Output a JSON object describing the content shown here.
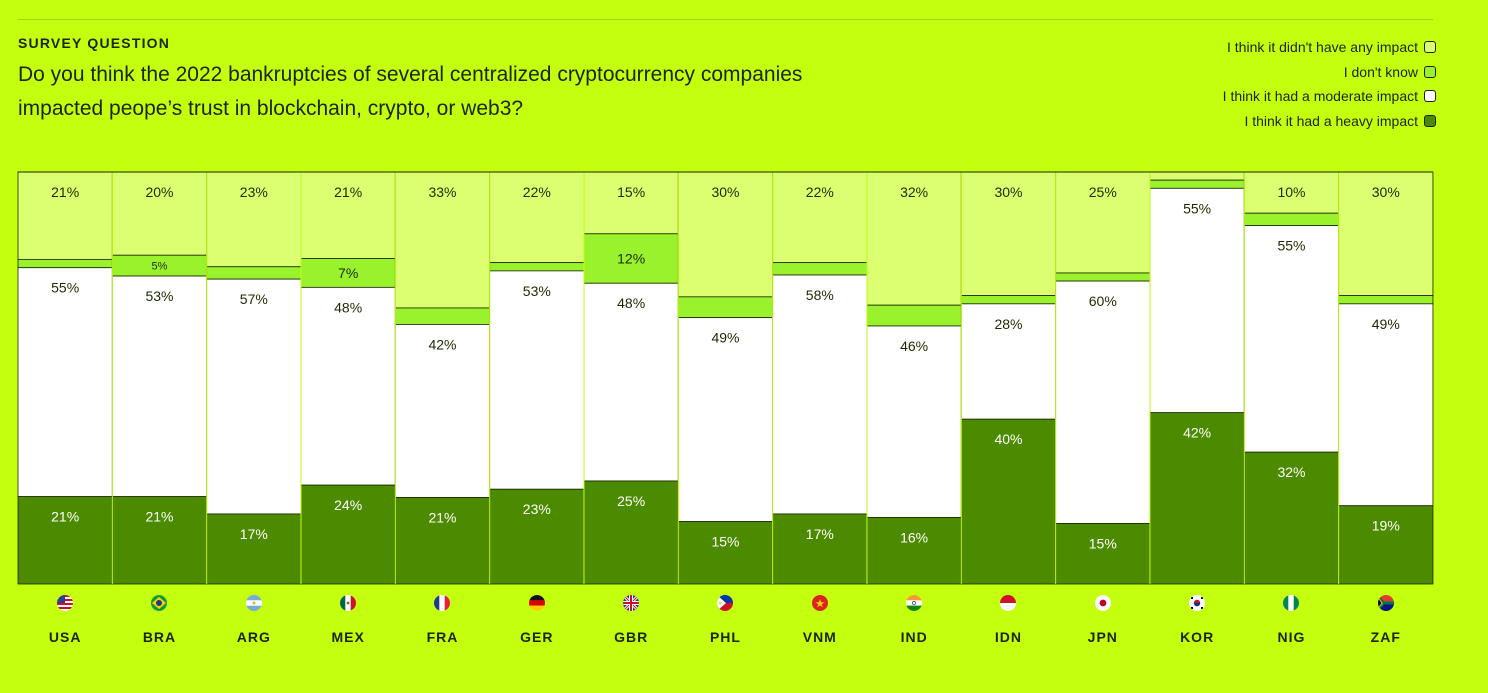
{
  "header": {
    "eyebrow": "SURVEY QUESTION",
    "question": "Do you think the 2022 bankruptcies of several centralized cryptocurrency companies impacted peope’s trust in blockchain, crypto, or web3?"
  },
  "legend": [
    {
      "label": "I think it didn't have any impact",
      "color": "#dcff72"
    },
    {
      "label": "I don't know",
      "color": "#9af22c"
    },
    {
      "label": "I think it had a moderate impact",
      "color": "#ffffff"
    },
    {
      "label": "I think it had a heavy impact",
      "color": "#4c8a00"
    }
  ],
  "chart_data": {
    "type": "bar",
    "stacked": true,
    "categories": [
      "USA",
      "BRA",
      "ARG",
      "MEX",
      "FRA",
      "GER",
      "GBR",
      "PHL",
      "VNM",
      "IND",
      "IDN",
      "JPN",
      "KOR",
      "NIG",
      "ZAF"
    ],
    "series": [
      {
        "name": "I think it didn't have any impact",
        "color": "#dcff72",
        "values": [
          21,
          20,
          23,
          21,
          33,
          22,
          15,
          30,
          22,
          32,
          30,
          25,
          2,
          10,
          30
        ],
        "labels": [
          "21%",
          "20%",
          "23%",
          "21%",
          "33%",
          "22%",
          "15%",
          "30%",
          "22%",
          "32%",
          "30%",
          "25%",
          "",
          "10%",
          "30%"
        ]
      },
      {
        "name": "I don't know",
        "color": "#9af22c",
        "values": [
          2,
          5,
          3,
          7,
          4,
          2,
          12,
          5,
          3,
          5,
          2,
          2,
          2,
          3,
          2
        ],
        "labels": [
          "",
          "5%",
          "",
          "7%",
          "",
          "",
          "12%",
          "",
          "",
          "",
          "",
          "",
          "",
          "",
          ""
        ]
      },
      {
        "name": "I think it had a moderate impact",
        "color": "#ffffff",
        "values": [
          55,
          53,
          57,
          48,
          42,
          53,
          48,
          49,
          58,
          46,
          28,
          60,
          55,
          55,
          49
        ],
        "labels": [
          "55%",
          "53%",
          "57%",
          "48%",
          "42%",
          "53%",
          "48%",
          "49%",
          "58%",
          "46%",
          "28%",
          "60%",
          "55%",
          "55%",
          "49%"
        ]
      },
      {
        "name": "I think it had a heavy impact",
        "color": "#4c8a00",
        "values": [
          21,
          21,
          17,
          24,
          21,
          23,
          25,
          15,
          17,
          16,
          40,
          15,
          42,
          32,
          19
        ],
        "labels": [
          "21%",
          "21%",
          "17%",
          "24%",
          "21%",
          "23%",
          "25%",
          "15%",
          "17%",
          "16%",
          "40%",
          "15%",
          "42%",
          "32%",
          "19%"
        ]
      }
    ],
    "ylim": [
      0,
      100
    ]
  }
}
